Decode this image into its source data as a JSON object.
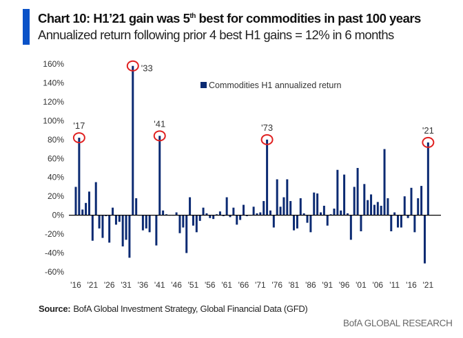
{
  "title": {
    "prefix": "Chart 10: H1’21 gain was 5",
    "sup": "th",
    "suffix": " best for commodities in past 100 years"
  },
  "subtitle": "Annualized return following prior 4 best H1 gains = 12% in 6 months",
  "chart_data": {
    "type": "bar",
    "ylim": [
      -60,
      160
    ],
    "yticks": [
      160,
      140,
      120,
      100,
      80,
      60,
      40,
      20,
      0,
      -20,
      -40,
      -60
    ],
    "ytick_labels": [
      "160%",
      "140%",
      "120%",
      "100%",
      "80%",
      "60%",
      "40%",
      "20%",
      "0%",
      "-20%",
      "-40%",
      "-60%"
    ],
    "xtick_labels": [
      "'16",
      "'21",
      "'26",
      "'31",
      "'36",
      "'41",
      "'46",
      "'51",
      "'56",
      "'61",
      "'66",
      "'71",
      "'76",
      "'81",
      "'86",
      "'91",
      "'96",
      "'01",
      "'06",
      "'11",
      "'16",
      "'21"
    ],
    "x_start": 1916,
    "x_end": 2021,
    "legend": {
      "position": "top-center"
    },
    "grid": false,
    "bar_color": "#0b2a72",
    "highlight_color": "#e02020",
    "series": [
      {
        "name": "Commodities H1 annualized return",
        "values": [
          30,
          82,
          6,
          13,
          25,
          -27,
          35,
          -14,
          -24,
          -1,
          -29,
          8,
          -10,
          -7,
          -33,
          -26,
          -45,
          158,
          18,
          0,
          -16,
          -14,
          -18,
          0,
          -32,
          84,
          5,
          1,
          0,
          0,
          3,
          -19,
          -13,
          -40,
          19,
          -11,
          -18,
          -6,
          8,
          2,
          -3,
          -4,
          1,
          4,
          -1,
          19,
          -2,
          8,
          -10,
          -5,
          11,
          -1,
          0,
          9,
          2,
          3,
          15,
          80,
          5,
          -13,
          38,
          9,
          19,
          38,
          15,
          -16,
          -14,
          18,
          2,
          -8,
          -18,
          24,
          23,
          3,
          10,
          -11,
          1,
          7,
          48,
          5,
          43,
          2,
          -26,
          30,
          50,
          -17,
          33,
          16,
          22,
          11,
          14,
          10,
          70,
          18,
          -17,
          3,
          -13,
          -13,
          20,
          -3,
          29,
          -18,
          18,
          31,
          -51,
          77
        ]
      }
    ],
    "annotations": [
      {
        "year": 1917,
        "label": "'17"
      },
      {
        "year": 1933,
        "label": "'33"
      },
      {
        "year": 1941,
        "label": "'41"
      },
      {
        "year": 1973,
        "label": "'73"
      },
      {
        "year": 2021,
        "label": "'21"
      }
    ]
  },
  "source": {
    "label": "Source:",
    "text": "BofA Global Investment Strategy, Global Financial Data (GFD)"
  },
  "brand": "BofA GLOBAL RESEARCH"
}
